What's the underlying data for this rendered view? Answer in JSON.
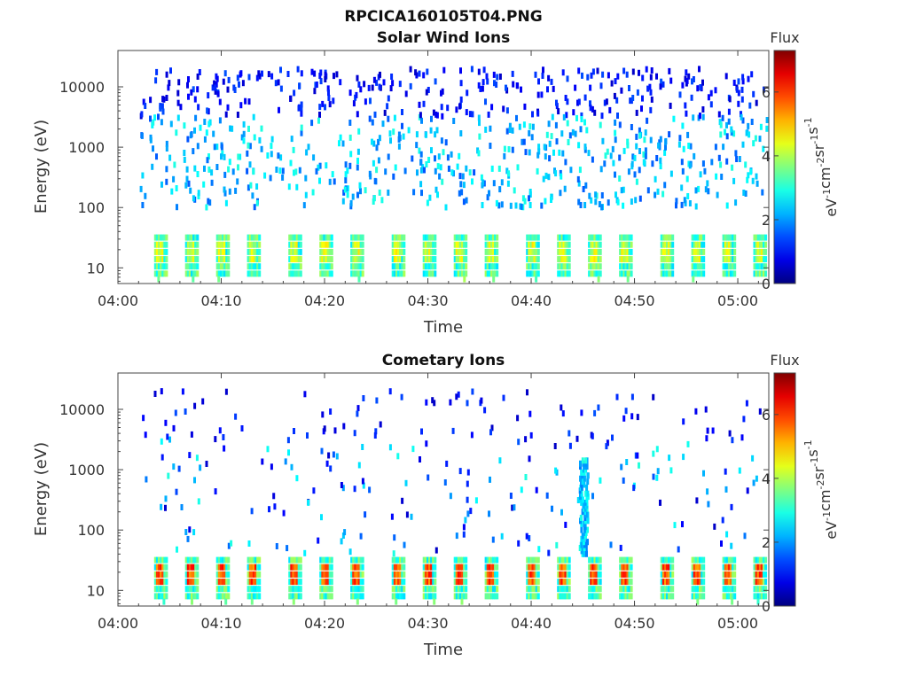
{
  "figure_title": "RPCICA160105T04.PNG",
  "colorbar": {
    "label": "Flux",
    "unit_base": "eV",
    "unit_parts": [
      {
        "t": "eV",
        "sup": "-1"
      },
      {
        "t": "cm",
        "sup": "-2"
      },
      {
        "t": "sr",
        "sup": "-1"
      },
      {
        "t": "s",
        "sup": "-1"
      }
    ],
    "range": [
      0,
      7.3
    ],
    "ticks": [
      "0",
      "2",
      "4",
      "6"
    ],
    "tick_values": [
      0,
      2,
      4,
      6
    ],
    "colormap": "jet"
  },
  "chart_data": [
    {
      "type": "heatmap",
      "title": "Solar Wind Ions",
      "xlabel": "Time",
      "ylabel": "Energy (eV)",
      "y_scale": "log",
      "ylim": [
        5.5,
        40000
      ],
      "xlim_minutes_after_0400": [
        0,
        63
      ],
      "x_ticks": [
        "04:00",
        "04:10",
        "04:20",
        "04:30",
        "04:40",
        "04:50",
        "05:00"
      ],
      "y_ticks": [
        "10",
        "100",
        "1000",
        "10000"
      ],
      "y_tick_values": [
        10,
        100,
        1000,
        10000
      ],
      "sweep_burst_times": [
        "04:04",
        "04:07",
        "04:10",
        "04:13",
        "04:17",
        "04:20",
        "04:23",
        "04:27",
        "04:30",
        "04:33",
        "04:36",
        "04:40",
        "04:43",
        "04:46",
        "04:49",
        "04:53",
        "04:56",
        "04:59",
        "05:02"
      ],
      "burst_energy_range_eV": [
        8,
        35
      ],
      "burst_flux": 4.2,
      "background_energy_range_eV": [
        100,
        20000
      ],
      "background_flux_range": [
        1.5,
        3
      ]
    },
    {
      "type": "heatmap",
      "title": "Cometary Ions",
      "xlabel": "Time",
      "ylabel": "Energy (eV)",
      "y_scale": "log",
      "ylim": [
        5.5,
        40000
      ],
      "xlim_minutes_after_0400": [
        0,
        63
      ],
      "x_ticks": [
        "04:00",
        "04:10",
        "04:20",
        "04:30",
        "04:40",
        "04:50",
        "05:00"
      ],
      "y_ticks": [
        "10",
        "100",
        "1000",
        "10000"
      ],
      "y_tick_values": [
        10,
        100,
        1000,
        10000
      ],
      "sweep_burst_times": [
        "04:04",
        "04:07",
        "04:10",
        "04:13",
        "04:17",
        "04:20",
        "04:23",
        "04:27",
        "04:30",
        "04:33",
        "04:36",
        "04:40",
        "04:43",
        "04:46",
        "04:49",
        "04:53",
        "04:56",
        "04:59",
        "05:02"
      ],
      "burst_energy_range_eV": [
        8,
        40
      ],
      "burst_flux": 5.8,
      "spike_time": "04:45",
      "spike_energy_range_eV": [
        40,
        1500
      ],
      "background_energy_range_eV": [
        40,
        20000
      ],
      "background_flux_range": [
        0.5,
        3
      ]
    }
  ]
}
